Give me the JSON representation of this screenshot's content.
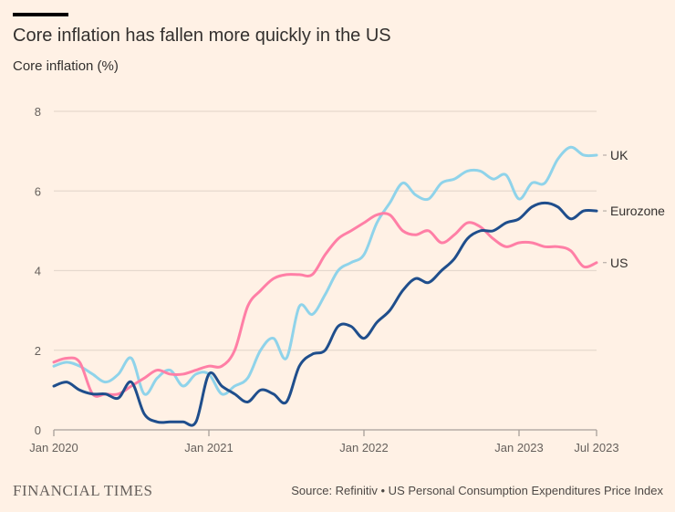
{
  "header": {
    "title": "Core inflation has fallen more quickly in the US",
    "subtitle": "Core inflation (%)"
  },
  "footer": {
    "logo": "FINANCIAL TIMES",
    "source": "Source: Refinitiv • US Personal Consumption Expenditures Price Index"
  },
  "chart_data": {
    "type": "line",
    "title": "Core inflation has fallen more quickly in the US",
    "ylabel": "Core inflation (%)",
    "xlabel": "",
    "x_start": "2020-01",
    "x_end": "2023-07",
    "x_frequency": "monthly",
    "ylim": [
      0,
      8
    ],
    "y_ticks": [
      0,
      2,
      4,
      6,
      8
    ],
    "x_ticks": [
      {
        "label": "Jan 2020",
        "month_index": 0
      },
      {
        "label": "Jan 2021",
        "month_index": 12
      },
      {
        "label": "Jan 2022",
        "month_index": 24
      },
      {
        "label": "Jan 2023",
        "month_index": 36
      },
      {
        "label": "Jul 2023",
        "month_index": 42
      }
    ],
    "grid": true,
    "legend": "direct labels at line ends (right)",
    "series": [
      {
        "name": "UK",
        "color": "#8fd3ea",
        "values": [
          1.6,
          1.7,
          1.6,
          1.4,
          1.2,
          1.4,
          1.8,
          0.9,
          1.3,
          1.5,
          1.1,
          1.4,
          1.4,
          0.9,
          1.1,
          1.3,
          2.0,
          2.3,
          1.8,
          3.1,
          2.9,
          3.4,
          4.0,
          4.2,
          4.4,
          5.2,
          5.7,
          6.2,
          5.9,
          5.8,
          6.2,
          6.3,
          6.5,
          6.5,
          6.3,
          6.4,
          5.8,
          6.2,
          6.2,
          6.8,
          7.1,
          6.9,
          6.9
        ]
      },
      {
        "name": "Eurozone",
        "color": "#1f4e8c",
        "values": [
          1.1,
          1.2,
          1.0,
          0.9,
          0.9,
          0.8,
          1.2,
          0.4,
          0.2,
          0.2,
          0.2,
          0.2,
          1.4,
          1.1,
          0.9,
          0.7,
          1.0,
          0.9,
          0.7,
          1.6,
          1.9,
          2.0,
          2.6,
          2.6,
          2.3,
          2.7,
          3.0,
          3.5,
          3.8,
          3.7,
          4.0,
          4.3,
          4.8,
          5.0,
          5.0,
          5.2,
          5.3,
          5.6,
          5.7,
          5.6,
          5.3,
          5.5,
          5.5
        ]
      },
      {
        "name": "US",
        "color": "#ff7fa6",
        "values": [
          1.7,
          1.8,
          1.7,
          0.9,
          0.9,
          0.9,
          1.1,
          1.3,
          1.5,
          1.4,
          1.4,
          1.5,
          1.6,
          1.6,
          2.0,
          3.1,
          3.5,
          3.8,
          3.9,
          3.9,
          3.9,
          4.4,
          4.8,
          5.0,
          5.2,
          5.4,
          5.4,
          5.0,
          4.9,
          5.0,
          4.7,
          4.9,
          5.2,
          5.1,
          4.8,
          4.6,
          4.7,
          4.7,
          4.6,
          4.6,
          4.5,
          4.1,
          4.2
        ]
      }
    ]
  }
}
